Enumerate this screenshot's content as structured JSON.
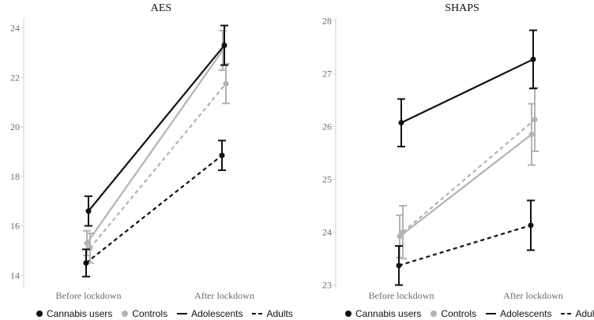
{
  "chart_data": [
    {
      "type": "line",
      "title": "AES",
      "categories": [
        "Before lockdown",
        "After lockdown"
      ],
      "ylim": [
        13.5,
        24.4
      ],
      "yticks": [
        14,
        16,
        18,
        20,
        22,
        24
      ],
      "grid": false,
      "series": [
        {
          "group": "Cannabis users",
          "age": "Adolescents",
          "values": [
            16.6,
            23.3
          ],
          "err": [
            0.6,
            0.8
          ]
        },
        {
          "group": "Controls",
          "age": "Adolescents",
          "values": [
            15.3,
            23.1
          ],
          "err": [
            0.5,
            0.8
          ]
        },
        {
          "group": "Controls",
          "age": "Adults",
          "values": [
            15.1,
            21.75
          ],
          "err": [
            0.6,
            0.8
          ]
        },
        {
          "group": "Cannabis users",
          "age": "Adults",
          "values": [
            14.5,
            18.85
          ],
          "err": [
            0.55,
            0.6
          ]
        }
      ]
    },
    {
      "type": "line",
      "title": "SHAPS",
      "categories": [
        "Before lockdown",
        "After lockdown"
      ],
      "ylim": [
        22.95,
        28.05
      ],
      "yticks": [
        23,
        24,
        25,
        26,
        27,
        28
      ],
      "grid": false,
      "series": [
        {
          "group": "Cannabis users",
          "age": "Adolescents",
          "values": [
            26.07,
            27.27
          ],
          "err": [
            0.45,
            0.55
          ]
        },
        {
          "group": "Controls",
          "age": "Adolescents",
          "values": [
            23.92,
            25.85
          ],
          "err": [
            0.4,
            0.58
          ]
        },
        {
          "group": "Controls",
          "age": "Adults",
          "values": [
            24.0,
            26.13
          ],
          "err": [
            0.5,
            0.6
          ]
        },
        {
          "group": "Cannabis users",
          "age": "Adults",
          "values": [
            23.37,
            24.13
          ],
          "err": [
            0.37,
            0.47
          ]
        }
      ]
    }
  ],
  "colors": {
    "Cannabis users": "#111111",
    "Controls": "#b3b3b3",
    "axis": "#cfcfcf",
    "tick_text": "#6b6b6b"
  },
  "line_styles": {
    "Adolescents": "solid",
    "Adults": "dashed"
  },
  "legends": [
    {
      "items": [
        {
          "kind": "dot",
          "label": "Cannabis users",
          "color": "#111111"
        },
        {
          "kind": "dot",
          "label": "Controls",
          "color": "#b3b3b3"
        },
        {
          "kind": "line",
          "label": "Adolescents",
          "style": "solid"
        },
        {
          "kind": "line",
          "label": "Adults",
          "style": "dashed"
        }
      ]
    },
    {
      "items": [
        {
          "kind": "dot",
          "label": "Cannabis users",
          "color": "#111111"
        },
        {
          "kind": "dot",
          "label": "Controls",
          "color": "#b3b3b3"
        },
        {
          "kind": "line",
          "label": "Adolescents",
          "style": "solid"
        },
        {
          "kind": "line",
          "label": "Adults",
          "style": "dashed"
        }
      ]
    }
  ]
}
